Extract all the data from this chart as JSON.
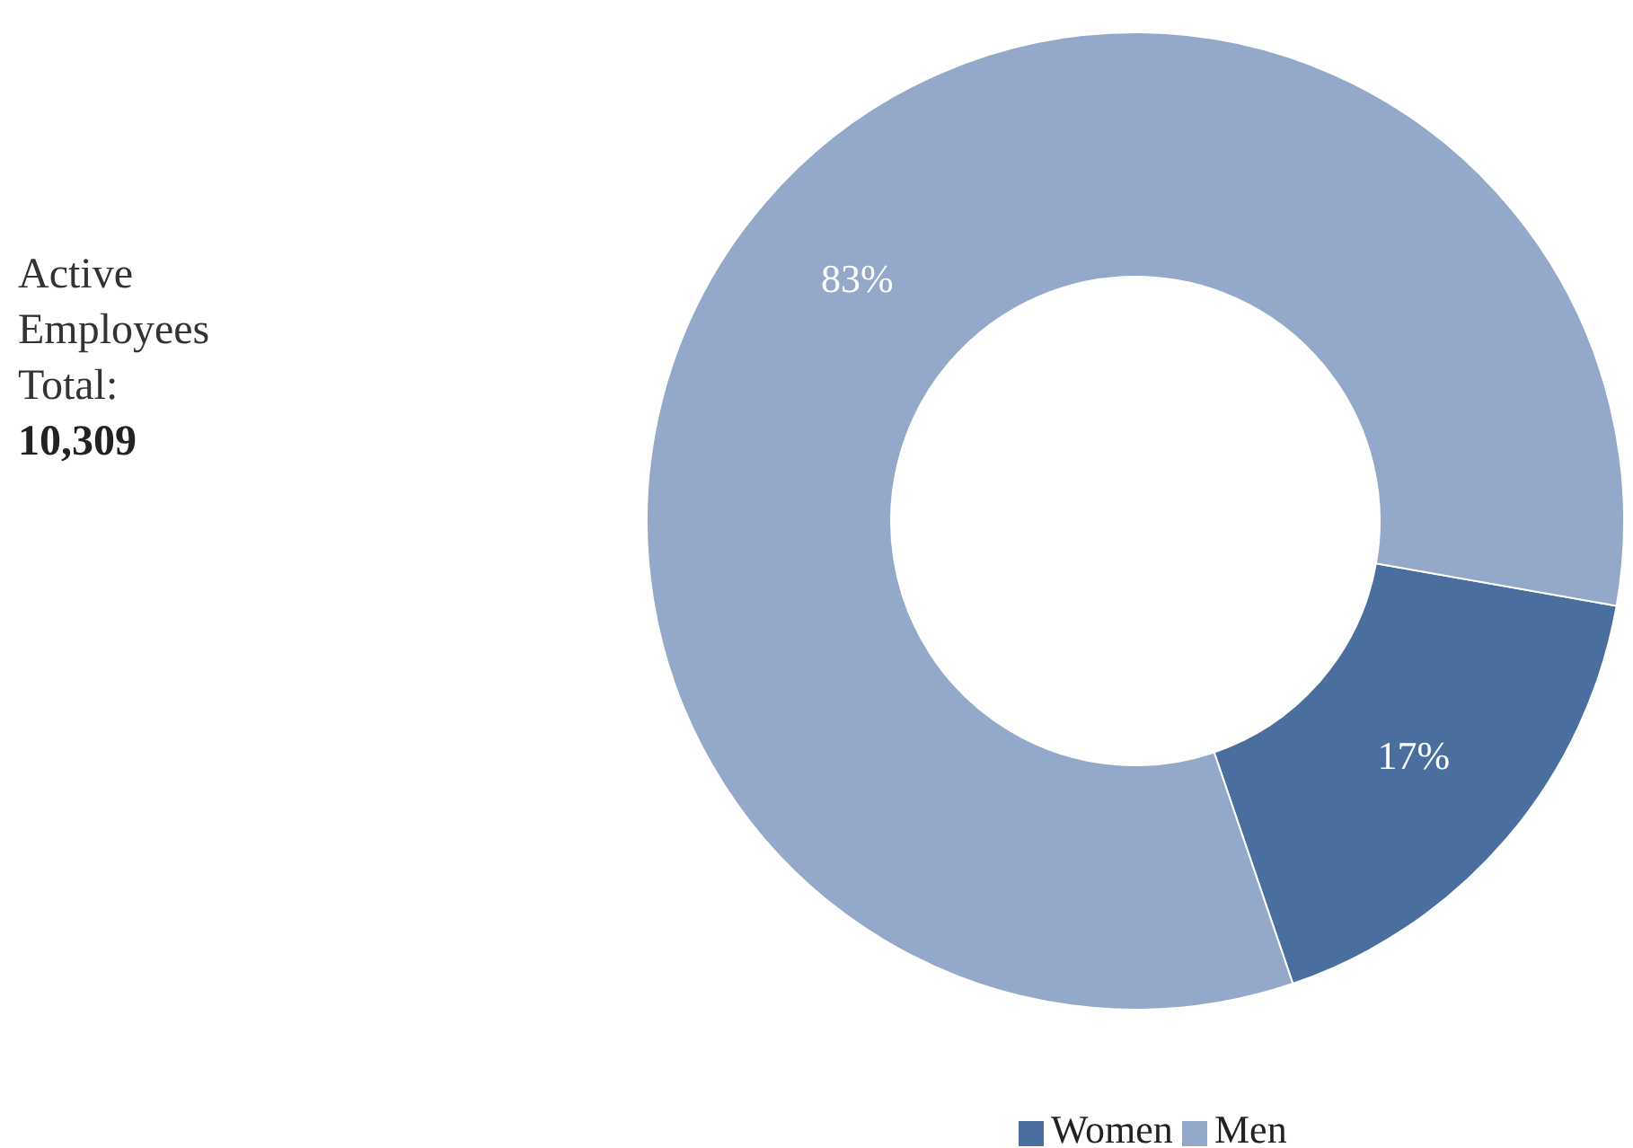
{
  "chart_data": {
    "type": "donut",
    "title": "Active Employees Total:",
    "subtitle": "10,309",
    "categories": [
      "Women",
      "Men"
    ],
    "values": [
      17,
      83
    ],
    "value_labels": [
      "17%",
      "83%"
    ],
    "colors": [
      "#4a6f9f",
      "#94a8ca"
    ],
    "legend": "bottom"
  }
}
